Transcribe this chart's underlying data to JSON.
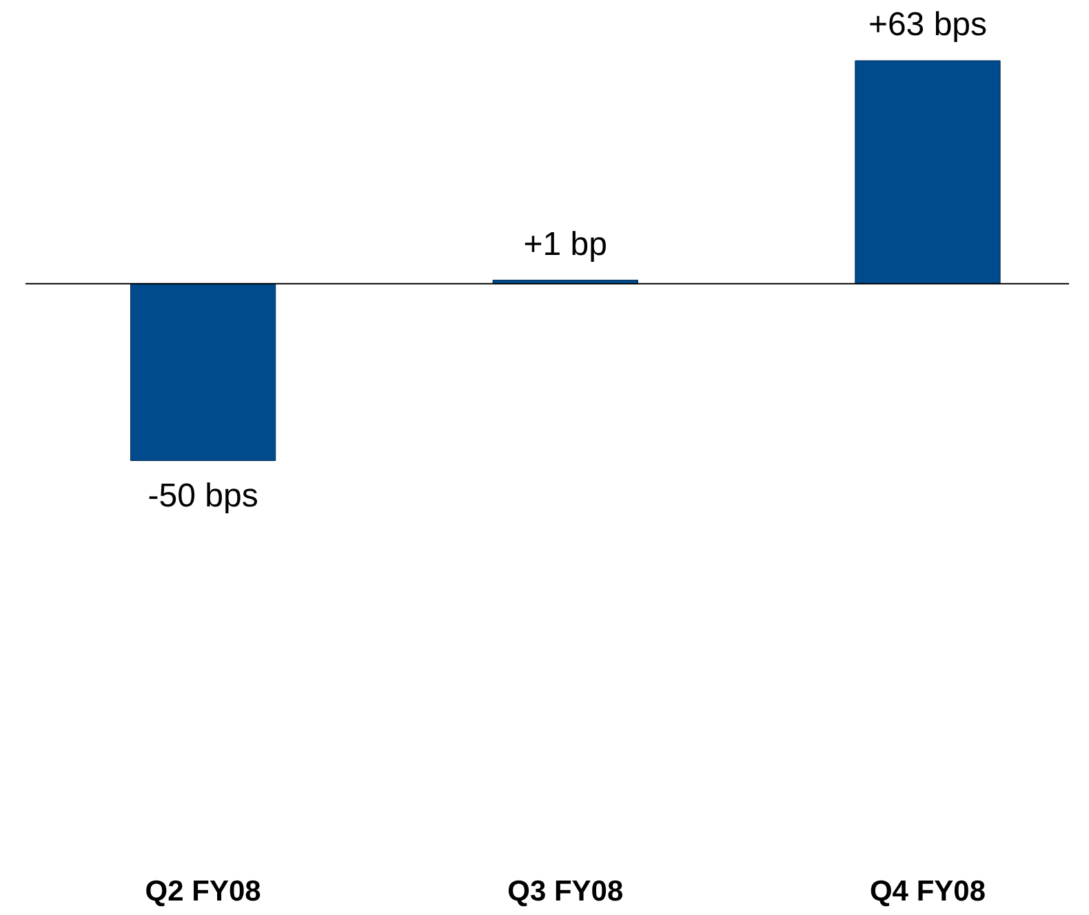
{
  "chart_data": {
    "type": "bar",
    "categories": [
      "Q2 FY08",
      "Q3 FY08",
      "Q4 FY08"
    ],
    "values": [
      -50,
      1,
      63
    ],
    "value_labels": [
      "-50 bps",
      "+1 bp",
      "+63 bps"
    ],
    "color": "#004b8d",
    "ref_lines": [
      {
        "axis": "y",
        "value": 0,
        "color": "#000000"
      }
    ]
  }
}
